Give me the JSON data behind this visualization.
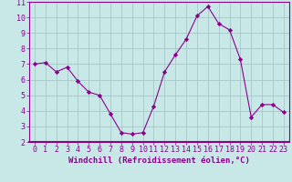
{
  "x": [
    0,
    1,
    2,
    3,
    4,
    5,
    6,
    7,
    8,
    9,
    10,
    11,
    12,
    13,
    14,
    15,
    16,
    17,
    18,
    19,
    20,
    21,
    22,
    23
  ],
  "y": [
    7.0,
    7.1,
    6.5,
    6.8,
    5.9,
    5.2,
    5.0,
    3.8,
    2.6,
    2.5,
    2.6,
    4.3,
    6.5,
    7.6,
    8.6,
    10.1,
    10.7,
    9.6,
    9.2,
    7.3,
    3.6,
    4.4,
    4.4,
    3.9
  ],
  "line_color": "#8B008B",
  "marker": "D",
  "marker_size": 2.2,
  "bg_color": "#c8e8e8",
  "grid_color": "#a0c0c0",
  "xlabel": "Windchill (Refroidissement éolien,°C)",
  "xlim": [
    -0.5,
    23.5
  ],
  "ylim": [
    2,
    11
  ],
  "yticks": [
    2,
    3,
    4,
    5,
    6,
    7,
    8,
    9,
    10,
    11
  ],
  "xticks": [
    0,
    1,
    2,
    3,
    4,
    5,
    6,
    7,
    8,
    9,
    10,
    11,
    12,
    13,
    14,
    15,
    16,
    17,
    18,
    19,
    20,
    21,
    22,
    23
  ],
  "tick_color": "#8B008B",
  "label_fontsize": 6.5,
  "tick_fontsize": 6.0,
  "spine_color": "#8B008B"
}
